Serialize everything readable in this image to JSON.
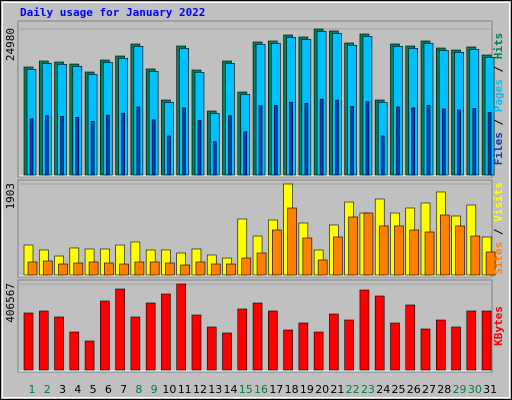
{
  "chart_data": [
    {
      "type": "bar",
      "title": "Daily usage for January 2022",
      "ylim": [
        0,
        24980
      ],
      "yticks": [
        24980
      ],
      "grid": true,
      "legend_separator": "/",
      "series": [
        {
          "name": "Hits",
          "color": "#00805c",
          "values": [
            18479,
            19505,
            19334,
            18992,
            17623,
            19676,
            20361,
            22414,
            18137,
            12832,
            22072,
            17965,
            10950,
            19505,
            14201,
            22756,
            22927,
            23954,
            23612,
            24980,
            24638,
            22585,
            24125,
            12832,
            22414,
            22072,
            22927,
            21730,
            21387,
            21901,
            20532
          ]
        },
        {
          "name": "Pages",
          "color": "#00c0ff",
          "values": [
            18079,
            19105,
            18934,
            18592,
            17223,
            19276,
            19961,
            22014,
            17737,
            12432,
            21672,
            17565,
            10550,
            19105,
            13801,
            22356,
            22527,
            23554,
            23212,
            24580,
            24238,
            22185,
            23725,
            12432,
            22014,
            21672,
            22527,
            21330,
            20987,
            21501,
            20132
          ]
        },
        {
          "name": "Files",
          "color": "#0040c0",
          "values": [
            9609,
            10143,
            10054,
            9876,
            9164,
            10232,
            10588,
            11655,
            9431,
            6673,
            11477,
            9342,
            5694,
            10143,
            7385,
            11833,
            11922,
            12456,
            12278,
            12990,
            12812,
            11744,
            12545,
            6673,
            11655,
            11477,
            11922,
            11300,
            11121,
            11389,
            10677
          ]
        }
      ]
    },
    {
      "type": "bar",
      "ylim": [
        0,
        1903
      ],
      "yticks": [
        1903
      ],
      "grid": true,
      "legend_separator": "/",
      "series": [
        {
          "name": "Visits",
          "color": "#ffff00",
          "values": [
            627,
            523,
            397,
            565,
            544,
            544,
            627,
            690,
            523,
            523,
            460,
            544,
            418,
            355,
            1171,
            815,
            1150,
            1903,
            1087,
            523,
            1046,
            1526,
            1296,
            1589,
            1296,
            1401,
            1506,
            1736,
            1234,
            1464,
            795
          ]
        },
        {
          "name": "Sites",
          "color": "#ff8000",
          "values": [
            272,
            293,
            230,
            251,
            272,
            251,
            230,
            272,
            272,
            251,
            209,
            272,
            230,
            230,
            355,
            460,
            941,
            1401,
            774,
            314,
            795,
            1213,
            1296,
            1025,
            1025,
            941,
            899,
            1255,
            1025,
            815,
            481
          ]
        }
      ]
    },
    {
      "type": "bar",
      "ylim": [
        0,
        406567
      ],
      "yticks": [
        406567
      ],
      "grid": true,
      "categories": [
        "1",
        "2",
        "3",
        "4",
        "5",
        "6",
        "7",
        "8",
        "9",
        "10",
        "11",
        "12",
        "13",
        "14",
        "15",
        "16",
        "17",
        "18",
        "19",
        "20",
        "21",
        "22",
        "23",
        "24",
        "25",
        "26",
        "27",
        "28",
        "29",
        "30",
        "31"
      ],
      "category_colors": [
        "#008040",
        "#008040",
        "#000000",
        "#000000",
        "#000000",
        "#000000",
        "#000000",
        "#008040",
        "#008040",
        "#000000",
        "#000000",
        "#000000",
        "#000000",
        "#000000",
        "#008040",
        "#008040",
        "#000000",
        "#000000",
        "#000000",
        "#000000",
        "#000000",
        "#008040",
        "#008040",
        "#000000",
        "#000000",
        "#000000",
        "#000000",
        "#000000",
        "#008040",
        "#008040",
        "#000000"
      ],
      "series": [
        {
          "name": "KBytes",
          "color": "#ff0000",
          "values": [
            269468,
            278923,
            250558,
            179645,
            137098,
            326198,
            382928,
            250558,
            316743,
            359290,
            406567,
            260013,
            203283,
            174918,
            288378,
            316743,
            278923,
            189100,
            222193,
            179645,
            264740,
            236375,
            378200,
            349835,
            222193,
            307288,
            193828,
            236375,
            203283,
            278923,
            278923
          ]
        }
      ]
    }
  ]
}
